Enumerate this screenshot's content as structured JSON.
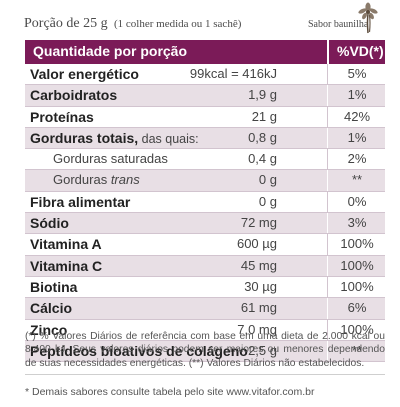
{
  "serving": {
    "portion": "Porção de 25 g",
    "measure": "(1 colher medida ou 1 sachê)",
    "flavor": "Sabor baunilha"
  },
  "table": {
    "header_left": "Quantidade por porção",
    "header_right": "%VD(*)",
    "rows": [
      {
        "name": "Valor energético",
        "value": "99kcal = 416kJ",
        "vd": "5%"
      },
      {
        "name": "Carboidratos",
        "value": "1,9 g",
        "vd": "1%"
      },
      {
        "name": "Proteínas",
        "value": "21 g",
        "vd": "42%"
      },
      {
        "name": "Gorduras totais,",
        "suffix": " das quais:",
        "value": "0,8 g",
        "vd": "1%"
      },
      {
        "name": "Gorduras saturadas",
        "value": "0,4 g",
        "vd": "2%"
      },
      {
        "name_prefix": "Gorduras ",
        "name_italic": "trans",
        "value": "0 g",
        "vd": "**"
      },
      {
        "name": "Fibra alimentar",
        "value": "0 g",
        "vd": "0%"
      },
      {
        "name": "Sódio",
        "value": "72 mg",
        "vd": "3%"
      },
      {
        "name": "Vitamina A",
        "value": "600 µg",
        "vd": "100%"
      },
      {
        "name": "Vitamina C",
        "value": "45 mg",
        "vd": "100%"
      },
      {
        "name": "Biotina",
        "value": "30 µg",
        "vd": "100%"
      },
      {
        "name": "Cálcio",
        "value": "61 mg",
        "vd": "6%"
      },
      {
        "name": "Zinco",
        "value": "7,0 mg",
        "vd": "100%"
      },
      {
        "name": "Peptídeos bioativos de colágeno",
        "value": "2,5 g",
        "vd": "**"
      }
    ]
  },
  "footnote": "(*) % Valores Diários de referência com base em uma dieta de 2.000 kcal ou 8.400 kJ. Seus valores diários podem ser maiores ou menores dependendo de suas necessidades energéticas. (**) Valores Diários não estabelecidos.",
  "note": "* Demais sabores consulte tabela pelo site www.vitafor.com.br",
  "colors": {
    "header": "#7b1b58",
    "shade": "#e8dfe5"
  }
}
